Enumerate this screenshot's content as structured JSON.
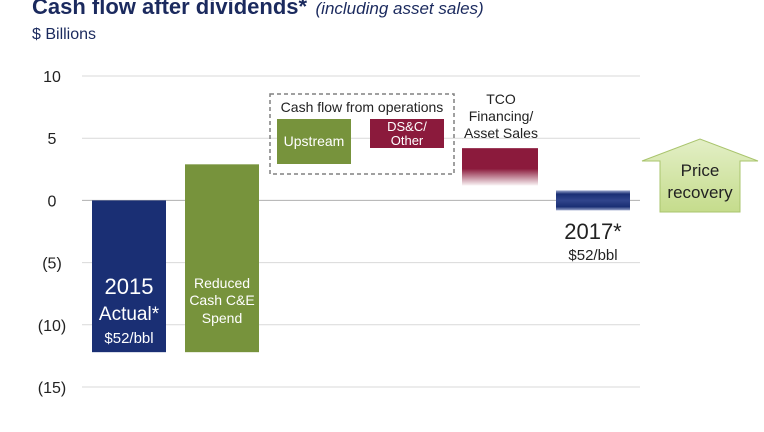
{
  "header": {
    "title": "Cash flow after dividends*",
    "subtitle": "(including asset sales)",
    "units": "$ Billions"
  },
  "colors": {
    "navy": "#1a2f74",
    "green": "#77933c",
    "crimson": "#8b1a3c",
    "light_green": "#c5dc8c",
    "grid": "#d9d9d9",
    "dashed_box": "#808080"
  },
  "chart_data": {
    "type": "bar",
    "ylim": [
      -15,
      10
    ],
    "ticks": [
      10,
      5,
      0,
      -5,
      -10,
      -15
    ],
    "tick_labels": [
      "10",
      "5",
      "0",
      "(5)",
      "(10)",
      "(15)"
    ],
    "grid": true,
    "bars": [
      {
        "category": "2015 Actual*",
        "start": 0,
        "end": -12.2,
        "color": "navy",
        "labels": [
          "2015",
          "Actual*",
          "$52/bbl"
        ]
      },
      {
        "category": "Reduced Cash C&E Spend",
        "start": -12.2,
        "end": 2.9,
        "color": "green",
        "labels": [
          "Reduced",
          "Cash C&E",
          "Spend"
        ]
      },
      {
        "category": "TCO Financing/ Asset Sales",
        "start": 1.2,
        "end": 4.2,
        "color": "crimson",
        "labels": [
          "TCO",
          "Financing/",
          "Asset Sales"
        ]
      },
      {
        "category": "2017*",
        "start": -0.8,
        "end": 0.8,
        "color": "navy",
        "labels": [
          "2017*",
          "$52/bbl"
        ]
      }
    ],
    "cfo_group": {
      "title": "Cash flow from operations",
      "items": [
        {
          "label": "Upstream",
          "color": "green"
        },
        {
          "label": "DS&C/ Other",
          "label_lines": [
            "DS&C/",
            "Other"
          ],
          "color": "crimson"
        }
      ]
    },
    "price_recovery": {
      "label_lines": [
        "Price",
        "recovery"
      ],
      "color": "light_green"
    }
  }
}
